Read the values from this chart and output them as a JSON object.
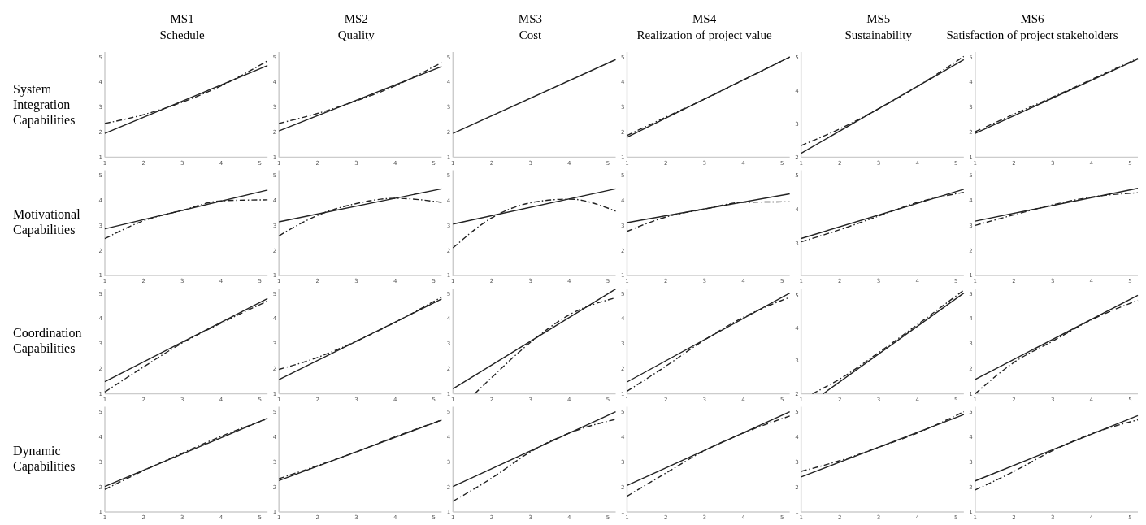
{
  "chart_data": [
    {
      "type": "line",
      "title": "MS1",
      "subtitle": "Schedule",
      "ylabel": "System Integration Capabilities",
      "xlim": [
        1,
        5.2
      ],
      "xticks": [
        1,
        2,
        3,
        4,
        5
      ],
      "ylim": [
        1,
        5.2
      ],
      "yticks": [
        1,
        2,
        3,
        4,
        5
      ],
      "series": [
        {
          "color": "#222222",
          "line_style": "solid",
          "x": [
            1,
            5.2
          ],
          "values": [
            1.95,
            4.66
          ]
        },
        {
          "color": "#222222",
          "line_style": "dashed",
          "x": [
            1,
            2,
            3,
            4,
            5.2
          ],
          "values": [
            2.35,
            2.7,
            3.2,
            3.85,
            4.85
          ]
        }
      ]
    },
    {
      "type": "line",
      "title": "MS2",
      "subtitle": "Quality",
      "xlim": [
        1,
        5.2
      ],
      "xticks": [
        1,
        2,
        3,
        4,
        5
      ],
      "ylim": [
        1,
        5.2
      ],
      "yticks": [
        1,
        2,
        3,
        4,
        5
      ],
      "series": [
        {
          "color": "#222222",
          "line_style": "solid",
          "x": [
            1,
            5.2
          ],
          "values": [
            2.05,
            4.62
          ]
        },
        {
          "color": "#222222",
          "line_style": "dashed",
          "x": [
            1,
            2,
            3,
            4,
            5.2
          ],
          "values": [
            2.35,
            2.75,
            3.25,
            3.85,
            4.78
          ]
        }
      ]
    },
    {
      "type": "line",
      "title": "MS3",
      "subtitle": "Cost",
      "xlim": [
        1,
        5.2
      ],
      "xticks": [
        1,
        2,
        3,
        4,
        5
      ],
      "ylim": [
        1,
        5.2
      ],
      "yticks": [
        1,
        2,
        3,
        4,
        5
      ],
      "series": [
        {
          "color": "#222222",
          "line_style": "solid",
          "x": [
            1,
            5.2
          ],
          "values": [
            1.95,
            4.9
          ]
        }
      ]
    },
    {
      "type": "line",
      "title": "MS4",
      "subtitle": "Realization of project value",
      "xlim": [
        1,
        5.2
      ],
      "xticks": [
        1,
        2,
        3,
        4,
        5
      ],
      "ylim": [
        1,
        5.2
      ],
      "yticks": [
        1,
        2,
        3,
        4,
        5
      ],
      "series": [
        {
          "color": "#222222",
          "line_style": "solid",
          "x": [
            1,
            5.2
          ],
          "values": [
            1.8,
            5.0
          ]
        },
        {
          "color": "#222222",
          "line_style": "dashed",
          "x": [
            1,
            2,
            3,
            4,
            5.2
          ],
          "values": [
            1.87,
            2.6,
            3.32,
            4.08,
            5.0
          ]
        }
      ]
    },
    {
      "type": "line",
      "title": "MS5",
      "subtitle": "Sustainability",
      "xlim": [
        1,
        5.2
      ],
      "xticks": [
        1,
        2,
        3,
        4,
        5
      ],
      "ylim": [
        2,
        5.15
      ],
      "yticks": [
        2,
        3,
        4,
        5
      ],
      "series": [
        {
          "color": "#222222",
          "line_style": "solid",
          "x": [
            1,
            5.2
          ],
          "values": [
            2.12,
            4.92
          ]
        },
        {
          "color": "#222222",
          "line_style": "dashed",
          "x": [
            1,
            2,
            3,
            4,
            5.2
          ],
          "values": [
            2.35,
            2.85,
            3.45,
            4.12,
            5.02
          ]
        }
      ]
    },
    {
      "type": "line",
      "title": "MS6",
      "subtitle": "Satisfaction of project stakeholders",
      "xlim": [
        1,
        5.2
      ],
      "xticks": [
        1,
        2,
        3,
        4,
        5
      ],
      "ylim": [
        1,
        5.2
      ],
      "yticks": [
        1,
        2,
        3,
        4,
        5
      ],
      "series": [
        {
          "color": "#222222",
          "line_style": "solid",
          "x": [
            1,
            5.2
          ],
          "values": [
            1.95,
            4.92
          ]
        },
        {
          "color": "#222222",
          "line_style": "dashed",
          "x": [
            1,
            2,
            3,
            4,
            5.2
          ],
          "values": [
            2.02,
            2.72,
            3.4,
            4.1,
            4.95
          ]
        }
      ]
    },
    {
      "type": "line",
      "ylabel": "Motivational Capabilities",
      "xlim": [
        1,
        5.2
      ],
      "xticks": [
        1,
        2,
        3,
        4,
        5
      ],
      "ylim": [
        1,
        5.2
      ],
      "yticks": [
        1,
        2,
        3,
        4,
        5
      ],
      "series": [
        {
          "color": "#222222",
          "line_style": "solid",
          "x": [
            1,
            5.2
          ],
          "values": [
            2.86,
            4.41
          ]
        },
        {
          "color": "#222222",
          "line_style": "dashed",
          "x": [
            1,
            2,
            3,
            4,
            5.2
          ],
          "values": [
            2.47,
            3.18,
            3.6,
            3.98,
            4.02
          ]
        }
      ]
    },
    {
      "type": "line",
      "xlim": [
        1,
        5.2
      ],
      "xticks": [
        1,
        2,
        3,
        4,
        5
      ],
      "ylim": [
        1,
        5.2
      ],
      "yticks": [
        1,
        2,
        3,
        4,
        5
      ],
      "series": [
        {
          "color": "#222222",
          "line_style": "solid",
          "x": [
            1,
            5.2
          ],
          "values": [
            3.14,
            4.46
          ]
        },
        {
          "color": "#222222",
          "line_style": "dashed",
          "x": [
            1,
            2,
            3,
            4,
            5.2
          ],
          "values": [
            2.58,
            3.4,
            3.87,
            4.08,
            3.92
          ]
        }
      ]
    },
    {
      "type": "line",
      "xlim": [
        1,
        5.2
      ],
      "xticks": [
        1,
        2,
        3,
        4,
        5
      ],
      "ylim": [
        1,
        5.2
      ],
      "yticks": [
        1,
        2,
        3,
        4,
        5
      ],
      "series": [
        {
          "color": "#222222",
          "line_style": "solid",
          "x": [
            1,
            5.2
          ],
          "values": [
            3.05,
            4.46
          ]
        },
        {
          "color": "#222222",
          "line_style": "dashed",
          "x": [
            1,
            2,
            3,
            4,
            5.2
          ],
          "values": [
            2.1,
            3.3,
            3.9,
            4.05,
            3.57
          ]
        }
      ]
    },
    {
      "type": "line",
      "xlim": [
        1,
        5.2
      ],
      "xticks": [
        1,
        2,
        3,
        4,
        5
      ],
      "ylim": [
        1,
        5.2
      ],
      "yticks": [
        1,
        2,
        3,
        4,
        5
      ],
      "series": [
        {
          "color": "#222222",
          "line_style": "solid",
          "x": [
            1,
            5.2
          ],
          "values": [
            3.11,
            4.26
          ]
        },
        {
          "color": "#222222",
          "line_style": "dashed",
          "x": [
            1,
            2,
            3,
            4,
            5.2
          ],
          "values": [
            2.76,
            3.33,
            3.65,
            3.92,
            3.94
          ]
        }
      ]
    },
    {
      "type": "line",
      "xlim": [
        1,
        5.2
      ],
      "xticks": [
        1,
        2,
        3,
        4,
        5
      ],
      "ylim": [
        2.05,
        5.15
      ],
      "yticks": [
        3,
        4,
        5
      ],
      "series": [
        {
          "color": "#222222",
          "line_style": "solid",
          "x": [
            1,
            5.2
          ],
          "values": [
            3.14,
            4.59
          ]
        },
        {
          "color": "#222222",
          "line_style": "dashed",
          "x": [
            1,
            2,
            3,
            4,
            5.2
          ],
          "values": [
            3.04,
            3.4,
            3.8,
            4.2,
            4.5
          ]
        }
      ]
    },
    {
      "type": "line",
      "xlim": [
        1,
        5.2
      ],
      "xticks": [
        1,
        2,
        3,
        4,
        5
      ],
      "ylim": [
        1,
        5.2
      ],
      "yticks": [
        1,
        2,
        3,
        4,
        5
      ],
      "series": [
        {
          "color": "#222222",
          "line_style": "solid",
          "x": [
            1,
            5.2
          ],
          "values": [
            3.17,
            4.48
          ]
        },
        {
          "color": "#222222",
          "line_style": "dashed",
          "x": [
            1,
            2,
            3,
            4,
            5.2
          ],
          "values": [
            3.0,
            3.42,
            3.82,
            4.13,
            4.3
          ]
        }
      ]
    },
    {
      "type": "line",
      "ylabel": "Coordination Capabilities",
      "xlim": [
        1,
        5.2
      ],
      "xticks": [
        1,
        2,
        3,
        4,
        5
      ],
      "ylim": [
        1,
        5.2
      ],
      "yticks": [
        1,
        2,
        3,
        4,
        5
      ],
      "series": [
        {
          "color": "#222222",
          "line_style": "solid",
          "x": [
            1,
            5.2
          ],
          "values": [
            1.48,
            4.8
          ]
        },
        {
          "color": "#222222",
          "line_style": "dashed",
          "x": [
            1,
            2,
            3,
            4,
            5.2
          ],
          "values": [
            1.07,
            2.07,
            3.03,
            3.82,
            4.7
          ]
        }
      ]
    },
    {
      "type": "line",
      "xlim": [
        1,
        5.2
      ],
      "xticks": [
        1,
        2,
        3,
        4,
        5
      ],
      "ylim": [
        1,
        5.2
      ],
      "yticks": [
        1,
        2,
        3,
        4,
        5
      ],
      "series": [
        {
          "color": "#222222",
          "line_style": "solid",
          "x": [
            1,
            5.2
          ],
          "values": [
            1.56,
            4.78
          ]
        },
        {
          "color": "#222222",
          "line_style": "dashed",
          "x": [
            1,
            2,
            3,
            4,
            5.2
          ],
          "values": [
            1.97,
            2.45,
            3.1,
            3.85,
            4.86
          ]
        }
      ]
    },
    {
      "type": "line",
      "xlim": [
        1,
        5.2
      ],
      "xticks": [
        1,
        2,
        3,
        4,
        5
      ],
      "ylim": [
        1,
        5.2
      ],
      "yticks": [
        1,
        2,
        3,
        4,
        5
      ],
      "series": [
        {
          "color": "#222222",
          "line_style": "solid",
          "x": [
            1,
            5.2
          ],
          "values": [
            1.2,
            5.18
          ]
        },
        {
          "color": "#222222",
          "line_style": "dashed",
          "x": [
            1.56,
            2,
            3,
            4,
            5.2
          ],
          "values": [
            1.0,
            1.65,
            3.05,
            4.15,
            4.83
          ]
        }
      ]
    },
    {
      "type": "line",
      "xlim": [
        1,
        5.2
      ],
      "xticks": [
        1,
        2,
        3,
        4,
        5
      ],
      "ylim": [
        1,
        5.2
      ],
      "yticks": [
        1,
        2,
        3,
        4,
        5
      ],
      "series": [
        {
          "color": "#222222",
          "line_style": "solid",
          "x": [
            1,
            5.2
          ],
          "values": [
            1.47,
            5.02
          ]
        },
        {
          "color": "#222222",
          "line_style": "dashed",
          "x": [
            1,
            2,
            3,
            4,
            5.2
          ],
          "values": [
            1.1,
            2.1,
            3.15,
            4.05,
            4.85
          ]
        }
      ]
    },
    {
      "type": "line",
      "xlim": [
        1,
        5.2
      ],
      "xticks": [
        1,
        2,
        3,
        4,
        5
      ],
      "ylim": [
        2,
        5.2
      ],
      "yticks": [
        2,
        3,
        4,
        5
      ],
      "series": [
        {
          "color": "#222222",
          "line_style": "solid",
          "x": [
            1.57,
            5.2
          ],
          "values": [
            2.0,
            5.06
          ]
        },
        {
          "color": "#222222",
          "line_style": "dashed",
          "x": [
            1.29,
            2,
            3,
            4,
            5.2
          ],
          "values": [
            2.0,
            2.45,
            3.25,
            4.1,
            5.15
          ]
        }
      ]
    },
    {
      "type": "line",
      "xlim": [
        1,
        5.2
      ],
      "xticks": [
        1,
        2,
        3,
        4,
        5
      ],
      "ylim": [
        1,
        5.2
      ],
      "yticks": [
        1,
        2,
        3,
        4,
        5
      ],
      "series": [
        {
          "color": "#222222",
          "line_style": "solid",
          "x": [
            1,
            5.2
          ],
          "values": [
            1.57,
            4.93
          ]
        },
        {
          "color": "#222222",
          "line_style": "dashed",
          "x": [
            1,
            2,
            3,
            4,
            5.2
          ],
          "values": [
            1.0,
            2.25,
            3.1,
            3.95,
            4.73
          ]
        }
      ]
    },
    {
      "type": "line",
      "ylabel": "Dynamic Capabilities",
      "xlim": [
        1,
        5.2
      ],
      "xticks": [
        1,
        2,
        3,
        4,
        5
      ],
      "ylim": [
        1,
        5.2
      ],
      "yticks": [
        1,
        2,
        3,
        4,
        5
      ],
      "series": [
        {
          "color": "#222222",
          "line_style": "solid",
          "x": [
            1,
            5.2
          ],
          "values": [
            2.02,
            4.74
          ]
        },
        {
          "color": "#222222",
          "line_style": "dashed",
          "x": [
            1,
            2,
            3,
            4,
            5.2
          ],
          "values": [
            1.9,
            2.65,
            3.35,
            4.02,
            4.72
          ]
        }
      ]
    },
    {
      "type": "line",
      "xlim": [
        1,
        5.2
      ],
      "xticks": [
        1,
        2,
        3,
        4,
        5
      ],
      "ylim": [
        1,
        5.2
      ],
      "yticks": [
        1,
        2,
        3,
        4,
        5
      ],
      "series": [
        {
          "color": "#222222",
          "line_style": "solid",
          "x": [
            1,
            5.2
          ],
          "values": [
            2.25,
            4.67
          ]
        },
        {
          "color": "#222222",
          "line_style": "dashed",
          "x": [
            1,
            2,
            3,
            4,
            5.2
          ],
          "values": [
            2.33,
            2.85,
            3.4,
            4.0,
            4.67
          ]
        }
      ]
    },
    {
      "type": "line",
      "xlim": [
        1,
        5.2
      ],
      "xticks": [
        1,
        2,
        3,
        4,
        5
      ],
      "ylim": [
        1,
        5.2
      ],
      "yticks": [
        1,
        2,
        3,
        4,
        5
      ],
      "series": [
        {
          "color": "#222222",
          "line_style": "solid",
          "x": [
            1,
            5.2
          ],
          "values": [
            2.02,
            5.0
          ]
        },
        {
          "color": "#222222",
          "line_style": "dashed",
          "x": [
            1,
            2,
            3,
            4,
            5.2
          ],
          "values": [
            1.43,
            2.35,
            3.4,
            4.15,
            4.7
          ]
        }
      ]
    },
    {
      "type": "line",
      "xlim": [
        1,
        5.2
      ],
      "xticks": [
        1,
        2,
        3,
        4,
        5
      ],
      "ylim": [
        1,
        5.2
      ],
      "yticks": [
        1,
        2,
        3,
        4,
        5
      ],
      "series": [
        {
          "color": "#222222",
          "line_style": "solid",
          "x": [
            1,
            5.2
          ],
          "values": [
            2.06,
            5.0
          ]
        },
        {
          "color": "#222222",
          "line_style": "dashed",
          "x": [
            1,
            2,
            3,
            4,
            5.2
          ],
          "values": [
            1.63,
            2.55,
            3.45,
            4.15,
            4.83
          ]
        }
      ]
    },
    {
      "type": "line",
      "xlim": [
        1,
        5.2
      ],
      "xticks": [
        1,
        2,
        3,
        4,
        5
      ],
      "ylim": [
        1,
        5.2
      ],
      "yticks": [
        1,
        2,
        3,
        4,
        5
      ],
      "series": [
        {
          "color": "#222222",
          "line_style": "solid",
          "x": [
            1,
            5.2
          ],
          "values": [
            2.4,
            4.89
          ]
        },
        {
          "color": "#222222",
          "line_style": "dashed",
          "x": [
            1,
            2,
            3,
            4,
            5.2
          ],
          "values": [
            2.62,
            3.05,
            3.58,
            4.15,
            5.0
          ]
        }
      ]
    },
    {
      "type": "line",
      "xlim": [
        1,
        5.2
      ],
      "xticks": [
        1,
        2,
        3,
        4,
        5
      ],
      "ylim": [
        1,
        5.2
      ],
      "yticks": [
        1,
        2,
        3,
        4,
        5
      ],
      "series": [
        {
          "color": "#222222",
          "line_style": "solid",
          "x": [
            1,
            5.2
          ],
          "values": [
            2.24,
            4.85
          ]
        },
        {
          "color": "#222222",
          "line_style": "dashed",
          "x": [
            1,
            2,
            3,
            4,
            5.2
          ],
          "values": [
            1.88,
            2.62,
            3.45,
            4.12,
            4.68
          ]
        }
      ]
    }
  ]
}
